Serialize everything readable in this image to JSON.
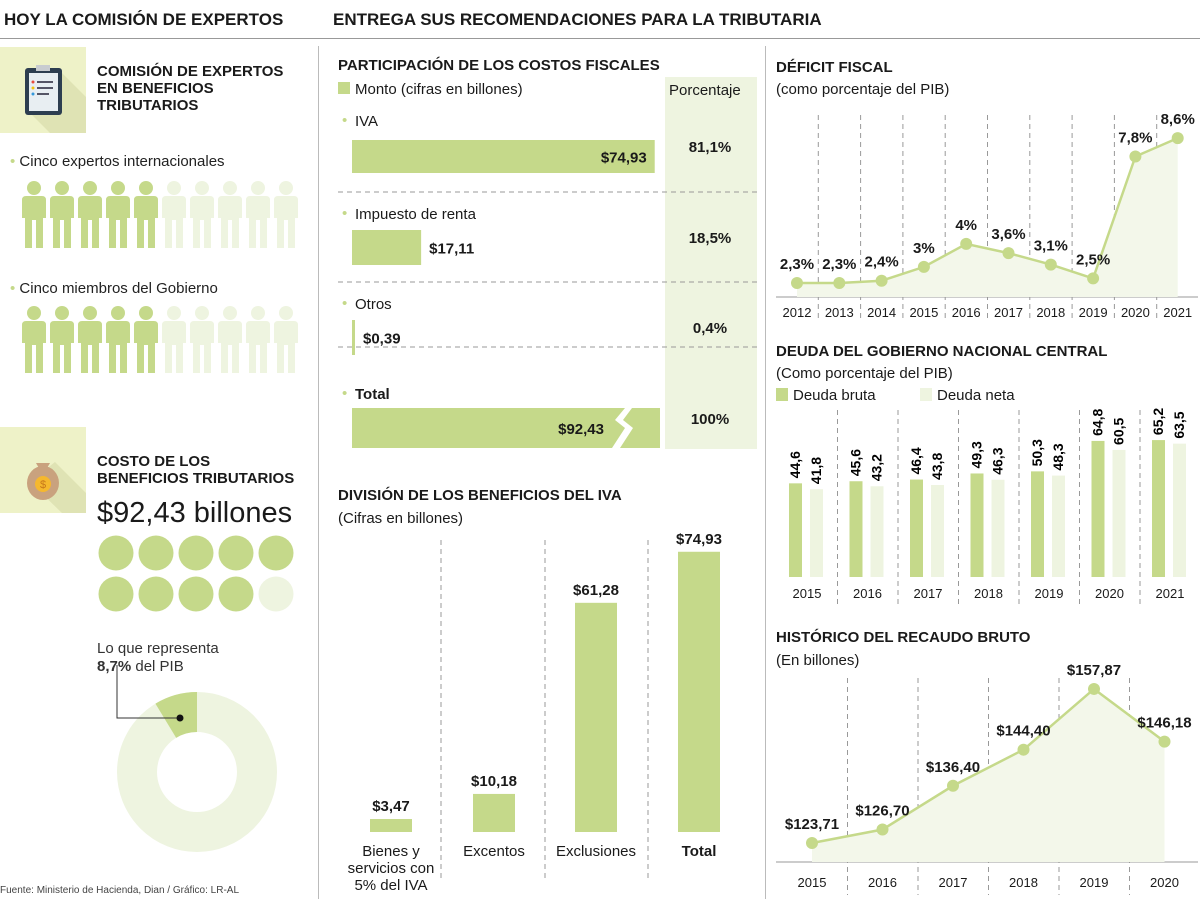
{
  "header": {
    "left": "HOY LA COMISIÓN DE EXPERTOS",
    "right": "ENTREGA SUS RECOMENDACIONES PARA LA TRIBUTARIA"
  },
  "colors": {
    "green": "#c5d98a",
    "light": "#eef4e0",
    "box": "#eef2c8"
  },
  "commission": {
    "icon": "clipboard-icon",
    "title": [
      "COMISIÓN DE EXPERTOS",
      "EN BENEFICIOS",
      "TRIBUTARIOS"
    ],
    "groups": [
      {
        "label": "Cinco expertos internacionales",
        "filled": 5,
        "total": 10
      },
      {
        "label": "Cinco miembros del Gobierno",
        "filled": 5,
        "total": 10
      }
    ]
  },
  "cost": {
    "icon": "money-bag-icon",
    "title": [
      "COSTO DE LOS",
      "BENEFICIOS TRIBUTARIOS"
    ],
    "amount": "$92,43 billones",
    "circles_filled": 9,
    "circles_total": 10,
    "pib_text": "Lo que representa",
    "pib_value": "8,7%",
    "pib_suffix": " del PIB",
    "pib_share": 8.7
  },
  "footer": "Fuente: Ministerio de Hacienda, Dian / Gráfico: LR-AL",
  "chart_data": [
    {
      "type": "bar",
      "title": "PARTICIPACIÓN DE LOS COSTOS FISCALES",
      "legend": "Monto (cifras en billones)",
      "column_header": "Porcentaje",
      "categories": [
        "IVA",
        "Impuesto de renta",
        "Otros",
        "Total"
      ],
      "values": [
        74.93,
        17.11,
        0.39,
        92.43
      ],
      "value_labels": [
        "$74,93",
        "$17,11",
        "$0,39",
        "$92,43"
      ],
      "percent_labels": [
        "81,1%",
        "18,5%",
        "0,4%",
        "100%"
      ]
    },
    {
      "type": "bar",
      "title": "DIVISIÓN DE LOS BENEFICIOS DEL IVA",
      "subtitle": "(Cifras en billones)",
      "categories": [
        [
          "Bienes y",
          "servicios con",
          "5% del IVA"
        ],
        [
          "Excentos"
        ],
        [
          "Exclusiones"
        ],
        [
          "Total"
        ]
      ],
      "values": [
        3.47,
        10.18,
        61.28,
        74.93
      ],
      "value_labels": [
        "$3,47",
        "$10,18",
        "$61,28",
        "$74,93"
      ]
    },
    {
      "type": "line",
      "title": "DÉFICIT FISCAL",
      "subtitle": "(como porcentaje del PIB)",
      "x": [
        "2012",
        "2013",
        "2014",
        "2015",
        "2016",
        "2017",
        "2018",
        "2019",
        "2020",
        "2021"
      ],
      "values": [
        2.3,
        2.3,
        2.4,
        3,
        4,
        3.6,
        3.1,
        2.5,
        7.8,
        8.6
      ],
      "value_labels": [
        "2,3%",
        "2,3%",
        "2,4%",
        "3%",
        "4%",
        "3,6%",
        "3,1%",
        "2,5%",
        "7,8%",
        "8,6%"
      ]
    },
    {
      "type": "bar",
      "title": "DEUDA DEL GOBIERNO NACIONAL CENTRAL",
      "subtitle": "(Como porcentaje del PIB)",
      "categories": [
        "2015",
        "2016",
        "2017",
        "2018",
        "2019",
        "2020",
        "2021"
      ],
      "series": [
        {
          "name": "Deuda bruta",
          "values": [
            44.6,
            45.6,
            46.4,
            49.3,
            50.3,
            64.8,
            65.2
          ],
          "labels": [
            "44,6",
            "45,6",
            "46,4",
            "49,3",
            "50,3",
            "64,8",
            "65,2"
          ]
        },
        {
          "name": "Deuda neta",
          "values": [
            41.8,
            43.2,
            43.8,
            46.3,
            48.3,
            60.5,
            63.5
          ],
          "labels": [
            "41,8",
            "43,2",
            "43,8",
            "46,3",
            "48,3",
            "60,5",
            "63,5"
          ]
        }
      ]
    },
    {
      "type": "line",
      "title": "HISTÓRICO DEL RECAUDO BRUTO",
      "subtitle": "(En billones)",
      "x": [
        "2015",
        "2016",
        "2017",
        "2018",
        "2019",
        "2020"
      ],
      "values": [
        123.71,
        126.7,
        136.4,
        144.4,
        157.87,
        146.18
      ],
      "value_labels": [
        "$123,71",
        "$126,70",
        "$136,40",
        "$144,40",
        "$157,87",
        "$146,18"
      ]
    }
  ]
}
